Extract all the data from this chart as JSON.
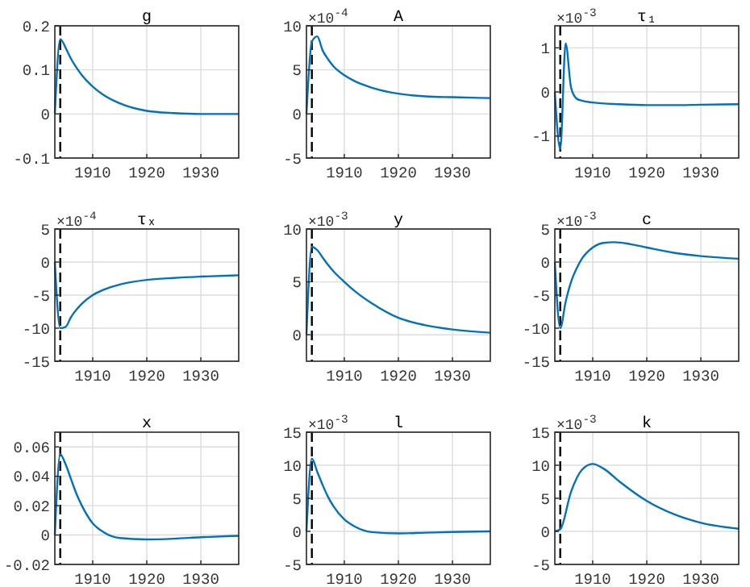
{
  "chart_data": [
    {
      "type": "line",
      "title": "g",
      "x": [
        1903,
        1904,
        1905,
        1906,
        1907,
        1908,
        1910,
        1912,
        1915,
        1920,
        1925,
        1930,
        1937
      ],
      "series": [
        {
          "color": "#0072bd",
          "values": [
            0,
            0.17,
            0.15,
            0.125,
            0.105,
            0.088,
            0.062,
            0.043,
            0.024,
            0.007,
            0.002,
            0,
            0
          ]
        }
      ],
      "xlim": [
        1903,
        1937
      ],
      "xticks": [
        1910,
        1920,
        1930
      ],
      "ylim": [
        -0.1,
        0.2
      ],
      "yticks": [
        -0.1,
        0,
        0.1,
        0.2
      ],
      "grid": true,
      "ref_lines": [
        {
          "axis": "x",
          "value": 1904,
          "color": "#000000",
          "line_style": "dashed"
        }
      ]
    },
    {
      "type": "line",
      "title": "A",
      "annotations": [
        "×10$^{-4}$"
      ],
      "x": [
        1903,
        1904,
        1905,
        1906,
        1907,
        1908,
        1910,
        1912,
        1915,
        1920,
        1925,
        1930,
        1937
      ],
      "series": [
        {
          "color": "#0072bd",
          "values": [
            0,
            8.2,
            8.8,
            7.2,
            6.2,
            5.4,
            4.4,
            3.7,
            3.0,
            2.3,
            2.0,
            1.9,
            1.8
          ]
        }
      ],
      "xlim": [
        1903,
        1937
      ],
      "xticks": [
        1910,
        1920,
        1930
      ],
      "ylim": [
        -5,
        10
      ],
      "yticks": [
        -5,
        0,
        5,
        10
      ],
      "grid": true,
      "ref_lines": [
        {
          "axis": "x",
          "value": 1904,
          "color": "#000000",
          "line_style": "dashed"
        }
      ]
    },
    {
      "type": "line",
      "title": "τ₁",
      "annotations": [
        "×10$^{-3}$"
      ],
      "x": [
        1903,
        1904,
        1905,
        1906,
        1907,
        1908,
        1910,
        1915,
        1920,
        1925,
        1930,
        1937
      ],
      "series": [
        {
          "color": "#0072bd",
          "values": [
            0,
            -1.3,
            1.1,
            0.1,
            -0.15,
            -0.2,
            -0.24,
            -0.28,
            -0.3,
            -0.3,
            -0.29,
            -0.28
          ]
        }
      ],
      "xlim": [
        1903,
        1937
      ],
      "xticks": [
        1910,
        1920,
        1930
      ],
      "ylim": [
        -1.5,
        1.5
      ],
      "yticks": [
        -1,
        0,
        1
      ],
      "grid": true,
      "ref_lines": [
        {
          "axis": "x",
          "value": 1904,
          "color": "#000000",
          "line_style": "dashed"
        }
      ]
    },
    {
      "type": "line",
      "title": "τₓ",
      "annotations": [
        "×10$^{-4}$"
      ],
      "x": [
        1903,
        1904,
        1905,
        1906,
        1907,
        1908,
        1910,
        1912,
        1915,
        1920,
        1925,
        1930,
        1937
      ],
      "series": [
        {
          "color": "#0072bd",
          "values": [
            0,
            -10,
            -9.8,
            -8.3,
            -7.2,
            -6.3,
            -5.0,
            -4.2,
            -3.4,
            -2.7,
            -2.4,
            -2.2,
            -2.0
          ]
        }
      ],
      "xlim": [
        1903,
        1937
      ],
      "xticks": [
        1910,
        1920,
        1930
      ],
      "ylim": [
        -15,
        5
      ],
      "yticks": [
        -15,
        -10,
        -5,
        0,
        5
      ],
      "grid": true,
      "ref_lines": [
        {
          "axis": "x",
          "value": 1904,
          "color": "#000000",
          "line_style": "dashed"
        }
      ]
    },
    {
      "type": "line",
      "title": "y",
      "annotations": [
        "×10$^{-3}$"
      ],
      "x": [
        1903,
        1904,
        1905,
        1906,
        1907,
        1908,
        1910,
        1912,
        1915,
        1920,
        1925,
        1930,
        1937
      ],
      "series": [
        {
          "color": "#0072bd",
          "values": [
            0,
            8.3,
            8.0,
            7.3,
            6.6,
            6.0,
            5.0,
            4.1,
            3.0,
            1.6,
            0.9,
            0.5,
            0.2
          ]
        }
      ],
      "xlim": [
        1903,
        1937
      ],
      "xticks": [
        1910,
        1920,
        1930
      ],
      "ylim": [
        -2.5,
        10
      ],
      "yticks": [
        0,
        5,
        10
      ],
      "grid": true,
      "ref_lines": [
        {
          "axis": "x",
          "value": 1904,
          "color": "#000000",
          "line_style": "dashed"
        }
      ]
    },
    {
      "type": "line",
      "title": "c",
      "annotations": [
        "×10$^{-3}$"
      ],
      "x": [
        1903,
        1904,
        1905,
        1906,
        1907,
        1908,
        1910,
        1912,
        1914,
        1917,
        1920,
        1925,
        1930,
        1937
      ],
      "series": [
        {
          "color": "#0072bd",
          "values": [
            0,
            -10,
            -6,
            -3,
            -1,
            0.5,
            2.2,
            2.9,
            3.0,
            2.7,
            2.2,
            1.4,
            0.9,
            0.5
          ]
        }
      ],
      "xlim": [
        1903,
        1937
      ],
      "xticks": [
        1910,
        1920,
        1930
      ],
      "ylim": [
        -15,
        5
      ],
      "yticks": [
        -15,
        -10,
        -5,
        0,
        5
      ],
      "grid": true,
      "ref_lines": [
        {
          "axis": "x",
          "value": 1904,
          "color": "#000000",
          "line_style": "dashed"
        }
      ]
    },
    {
      "type": "line",
      "title": "x",
      "x": [
        1903,
        1904,
        1905,
        1906,
        1907,
        1908,
        1910,
        1912,
        1915,
        1920,
        1925,
        1930,
        1937
      ],
      "series": [
        {
          "color": "#0072bd",
          "values": [
            0,
            0.055,
            0.048,
            0.038,
            0.028,
            0.02,
            0.008,
            0.002,
            -0.002,
            -0.003,
            -0.0025,
            -0.0015,
            -0.0005
          ]
        }
      ],
      "xlim": [
        1903,
        1937
      ],
      "xticks": [
        1910,
        1920,
        1930
      ],
      "ylim": [
        -0.02,
        0.07
      ],
      "yticks": [
        -0.02,
        0,
        0.02,
        0.04,
        0.06
      ],
      "grid": true,
      "ref_lines": [
        {
          "axis": "x",
          "value": 1904,
          "color": "#000000",
          "line_style": "dashed"
        }
      ]
    },
    {
      "type": "line",
      "title": "l",
      "annotations": [
        "×10$^{-3}$"
      ],
      "x": [
        1903,
        1904,
        1905,
        1906,
        1907,
        1908,
        1910,
        1912,
        1915,
        1920,
        1925,
        1930,
        1937
      ],
      "series": [
        {
          "color": "#0072bd",
          "values": [
            0,
            11,
            9,
            7,
            5.2,
            3.8,
            1.8,
            0.7,
            -0.1,
            -0.3,
            -0.2,
            -0.1,
            0
          ]
        }
      ],
      "xlim": [
        1903,
        1937
      ],
      "xticks": [
        1910,
        1920,
        1930
      ],
      "ylim": [
        -5,
        15
      ],
      "yticks": [
        -5,
        0,
        5,
        10,
        15
      ],
      "grid": true,
      "ref_lines": [
        {
          "axis": "x",
          "value": 1904,
          "color": "#000000",
          "line_style": "dashed"
        }
      ]
    },
    {
      "type": "line",
      "title": "k",
      "annotations": [
        "×10$^{-3}$"
      ],
      "x": [
        1903,
        1904,
        1906,
        1908,
        1910,
        1912,
        1915,
        1920,
        1925,
        1930,
        1937
      ],
      "series": [
        {
          "color": "#0072bd",
          "values": [
            0,
            0.3,
            6,
            9.3,
            10.2,
            9.5,
            7.5,
            4.6,
            2.6,
            1.3,
            0.4
          ]
        }
      ],
      "xlim": [
        1903,
        1937
      ],
      "xticks": [
        1910,
        1920,
        1930
      ],
      "ylim": [
        -5,
        15
      ],
      "yticks": [
        -5,
        0,
        5,
        10,
        15
      ],
      "grid": true,
      "ref_lines": [
        {
          "axis": "x",
          "value": 1904,
          "color": "#000000",
          "line_style": "dashed"
        }
      ]
    }
  ]
}
